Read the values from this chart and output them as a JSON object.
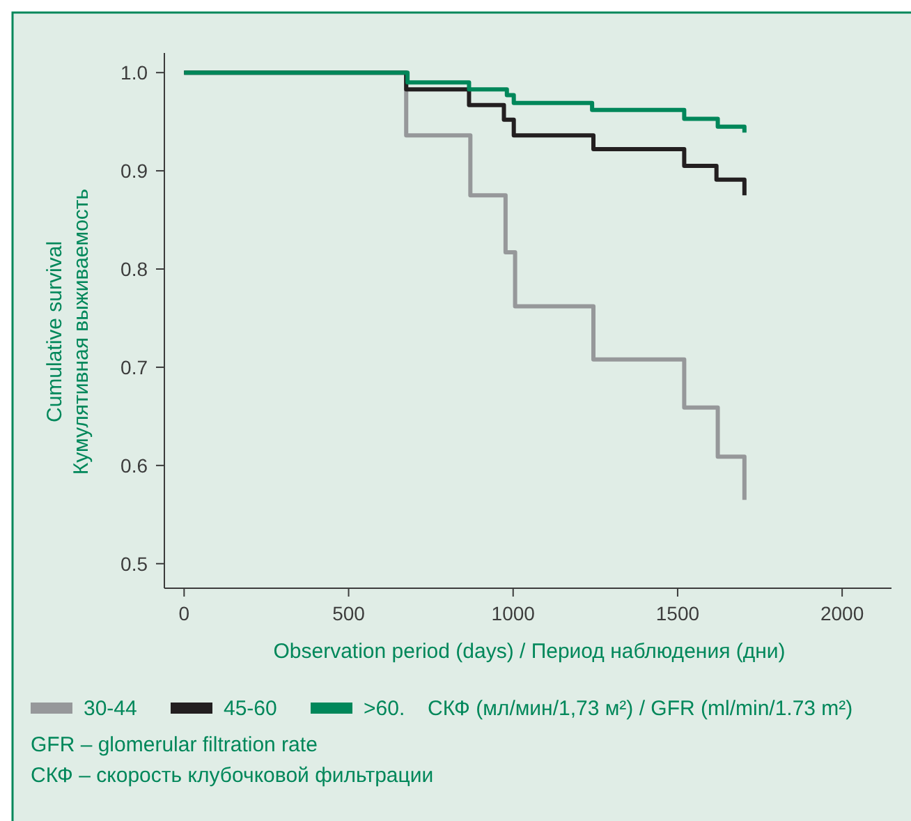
{
  "chart_data": {
    "type": "step",
    "xlabel": "Observation period (days)  /  Период наблюдения (дни)",
    "ylabel": "Cumulative survival\nКумулятивная выживаемость",
    "xlim": [
      -60,
      2150
    ],
    "xticks": [
      0,
      500,
      1000,
      1500,
      2000
    ],
    "ylim": [
      0.475,
      1.02
    ],
    "yticks": [
      0.5,
      0.6,
      0.7,
      0.8,
      0.9,
      {
        "value": 1.0,
        "label": "1.0"
      }
    ],
    "grid": false,
    "legend": "bottom",
    "marker": "none",
    "line_style": "solid",
    "legend_title": "СКФ (мл/мин/1,73 м²) / GFR (ml/min/1.73 m²)",
    "series": [
      {
        "name": "30-44",
        "color": "#96989a",
        "x": [
          0,
          675,
          870,
          977,
          1006,
          1244,
          1520,
          1622,
          1703
        ],
        "values": [
          1.0,
          0.936,
          0.875,
          0.817,
          0.762,
          0.708,
          0.659,
          0.609,
          0.565
        ]
      },
      {
        "name": "45-60",
        "color": "#231f20",
        "x": [
          0,
          675,
          866,
          972,
          1002,
          1244,
          1520,
          1618,
          1703
        ],
        "values": [
          1.0,
          0.983,
          0.967,
          0.952,
          0.936,
          0.922,
          0.905,
          0.891,
          0.875
        ]
      },
      {
        "name": ">60.",
        "color": "#00875a",
        "x": [
          0,
          679,
          866,
          981,
          1002,
          1240,
          1520,
          1622,
          1703
        ],
        "values": [
          1.0,
          0.99,
          0.983,
          0.977,
          0.969,
          0.962,
          0.953,
          0.945,
          0.939
        ]
      }
    ],
    "annotations": [
      "GFR – glomerular filtration rate",
      "СКФ – скорость клубочковой фильтрации"
    ]
  }
}
